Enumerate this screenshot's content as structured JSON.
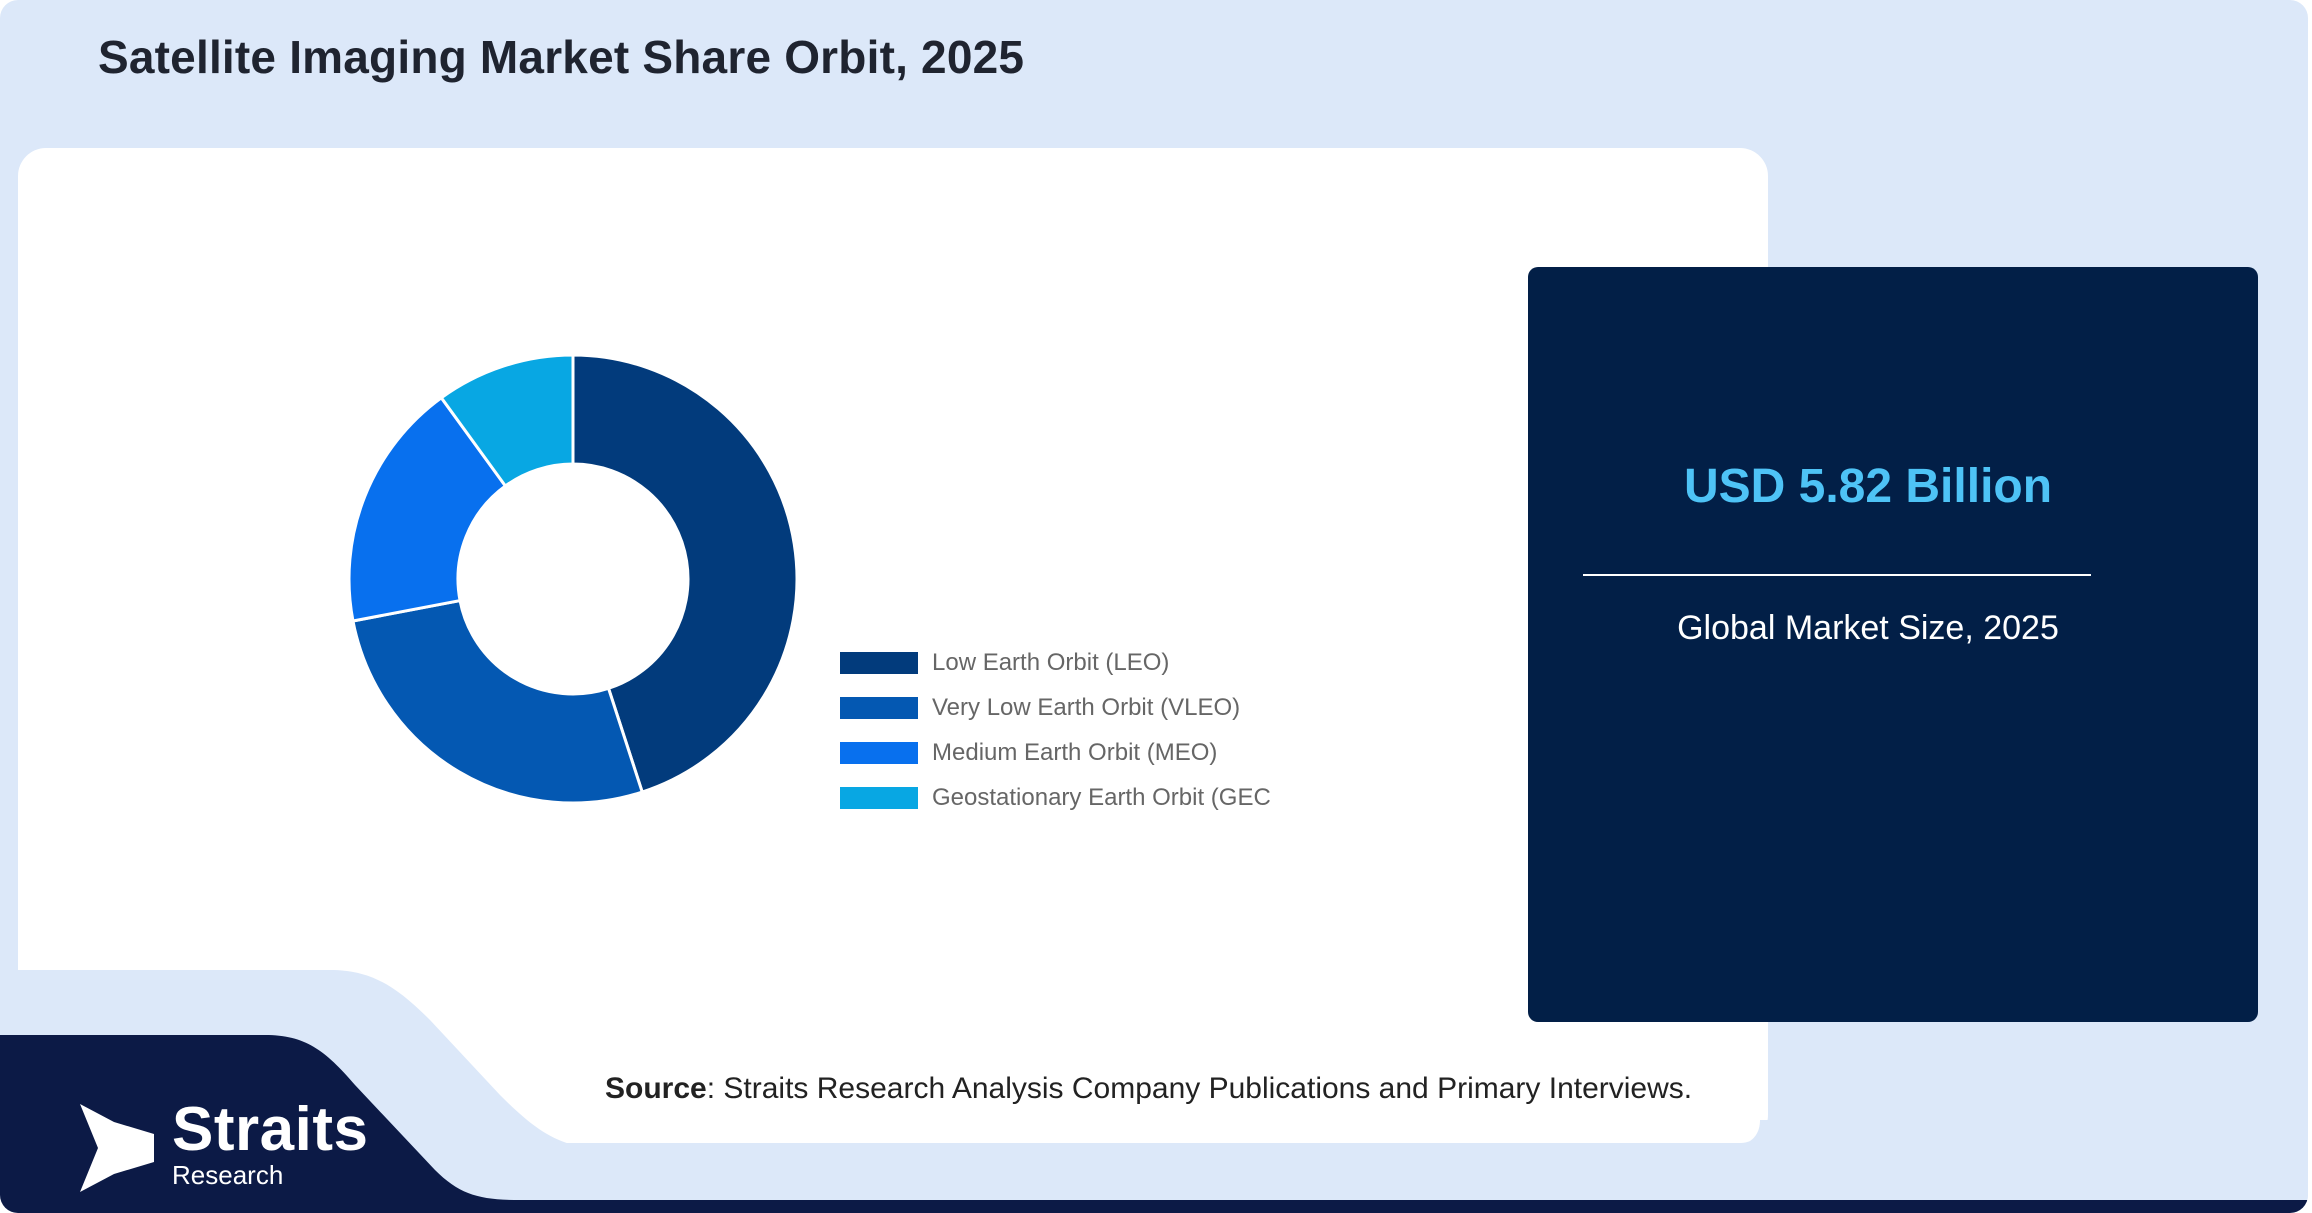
{
  "title": "Satellite Imaging Market Share Orbit, 2025",
  "chart_data": {
    "type": "pie",
    "donut": true,
    "title": "",
    "categories": [
      "Low Earth Orbit (LEO)",
      "Very Low Earth Orbit (VLEO)",
      "Medium Earth Orbit (MEO)",
      "Geostationary Earth Orbit (GEC"
    ],
    "values": [
      45,
      27,
      18,
      10
    ],
    "colors": [
      "#023b7c",
      "#0458b2",
      "#0870ee",
      "#08a7e3"
    ],
    "legend_position": "right"
  },
  "panel": {
    "value": "USD 5.82 Billion",
    "caption": "Global Market Size, 2025"
  },
  "source": {
    "label": "Source",
    "text": ": Straits Research Analysis Company Publications and Primary Interviews."
  },
  "logo": {
    "name": "Straits",
    "sub": "Research"
  }
}
